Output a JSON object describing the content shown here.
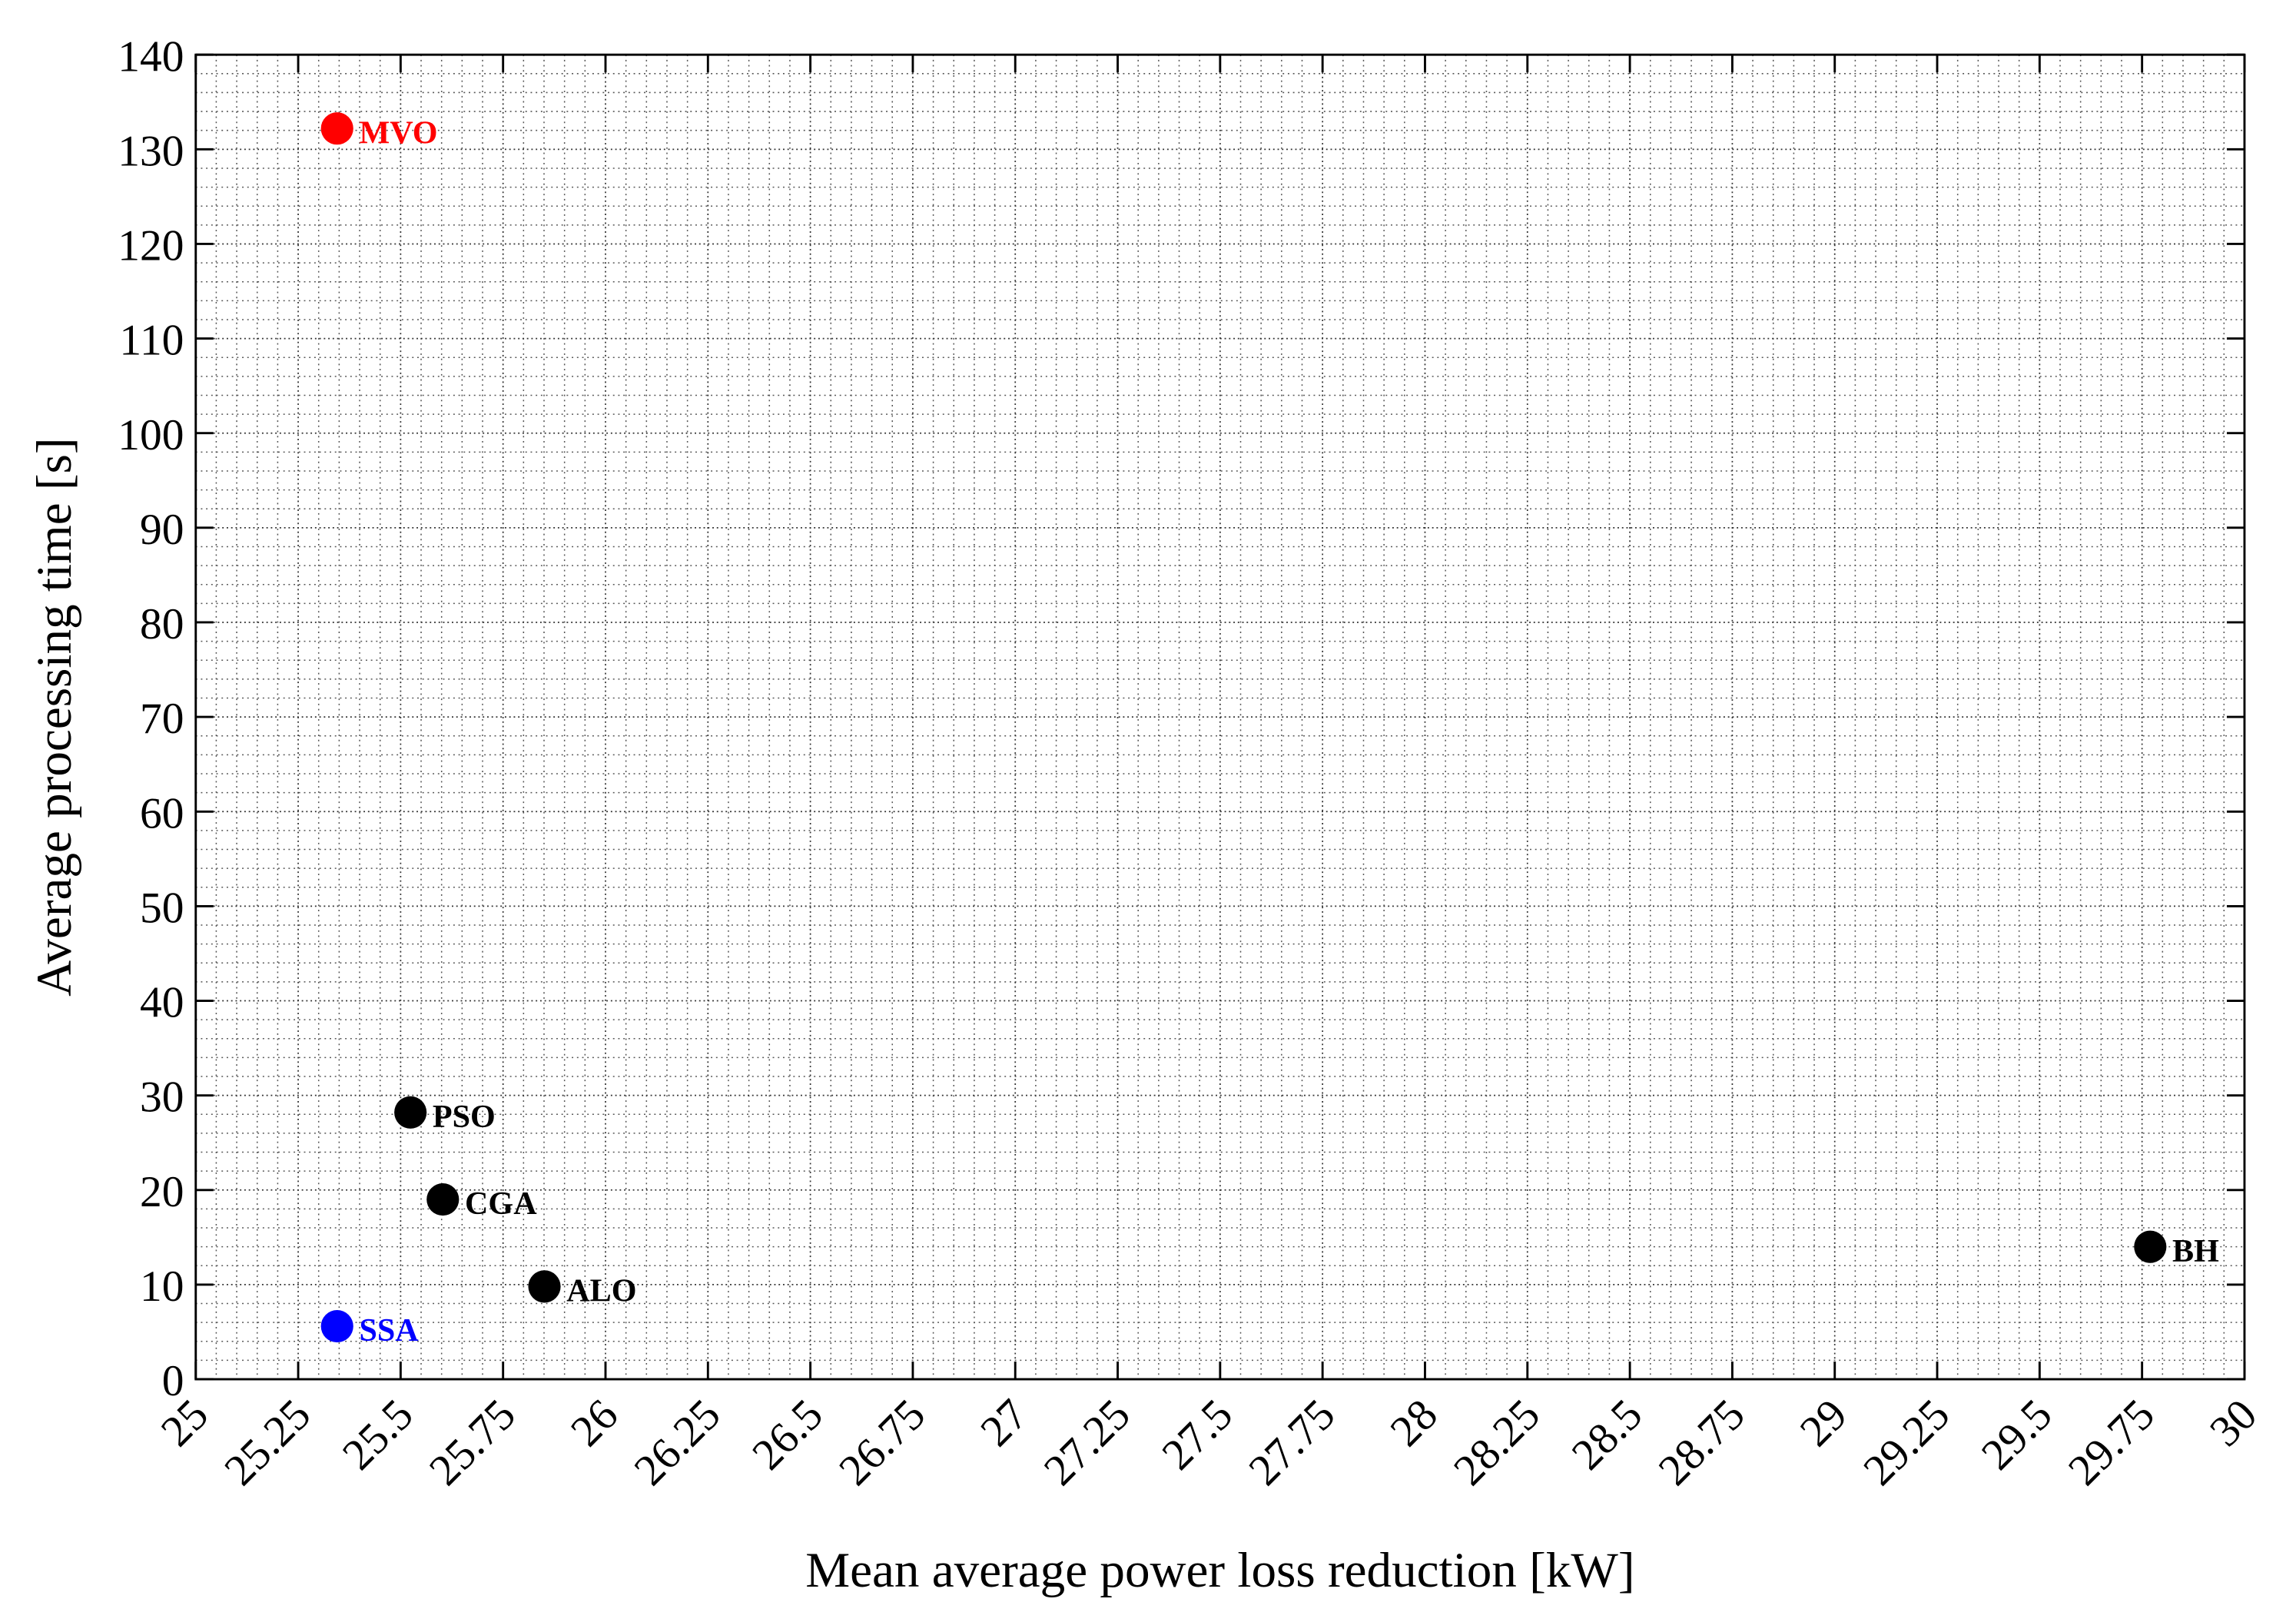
{
  "chart_data": {
    "type": "scatter",
    "x_label": "Mean average power loss reduction [kW]",
    "y_label": "Average processing time [s]",
    "x": [
      25.345,
      25.345,
      25.524,
      25.603,
      25.851,
      29.77
    ],
    "values": [
      132.2,
      5.6,
      28.2,
      19.0,
      9.8,
      14.0
    ],
    "labels": [
      "MVO",
      "SSA",
      "PSO",
      "CGA",
      "ALO",
      "BH"
    ],
    "colors": [
      "#ff0000",
      "#0000ff",
      "#000000",
      "#000000",
      "#000000",
      "#000000"
    ],
    "xlim": [
      25,
      30
    ],
    "xticks": [
      25,
      25.25,
      25.5,
      25.75,
      26,
      26.25,
      26.5,
      26.75,
      27,
      27.25,
      27.5,
      27.75,
      28,
      28.25,
      28.5,
      28.75,
      29,
      29.25,
      29.5,
      29.75,
      30
    ],
    "ylim": [
      0,
      140
    ],
    "yticks": [
      0,
      10,
      20,
      30,
      40,
      50,
      60,
      70,
      80,
      90,
      100,
      110,
      120,
      130,
      140
    ],
    "grid": true,
    "minor_grid": true
  }
}
